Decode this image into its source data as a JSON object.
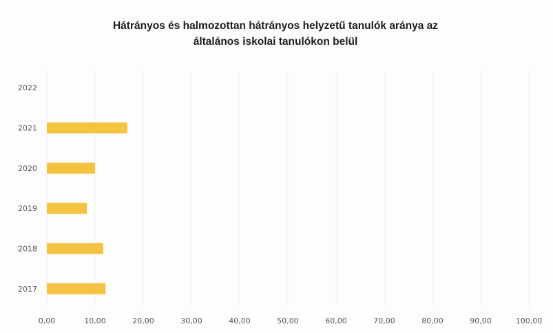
{
  "chart_data": {
    "type": "bar",
    "orientation": "horizontal",
    "title": [
      "Hátrányos és halmozottan hátrányos helyzetű  tanulók aránya az",
      "általános iskolai tanulókon belül"
    ],
    "categories": [
      "2017",
      "2018",
      "2019",
      "2020",
      "2021",
      "2022"
    ],
    "values": [
      12.2,
      11.7,
      8.3,
      10.0,
      16.7,
      null
    ],
    "xlim": [
      0,
      100
    ],
    "x_ticks": [
      "0,00",
      "10,00",
      "20,00",
      "30,00",
      "40,00",
      "50,00",
      "60,00",
      "70,00",
      "80,00",
      "90,00",
      "100,00"
    ],
    "bar_color": "#f5c342",
    "grid": true,
    "legend": "none"
  }
}
